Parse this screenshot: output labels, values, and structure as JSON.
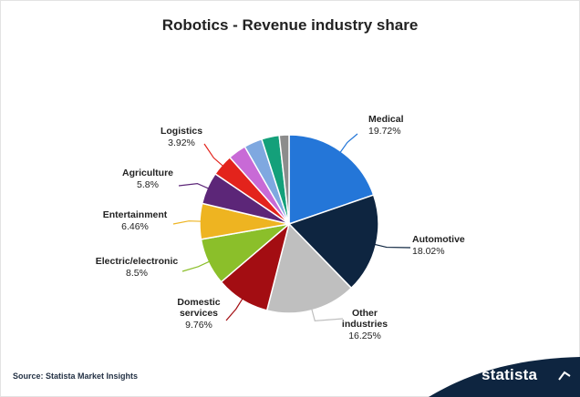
{
  "chart_data": {
    "type": "pie",
    "title": "Robotics - Revenue industry share",
    "slices": [
      {
        "label": "Medical",
        "value": 19.72,
        "value_label": "19.72%",
        "color": "#2476d8"
      },
      {
        "label": "Automotive",
        "value": 18.02,
        "value_label": "18.02%",
        "color": "#0e2540"
      },
      {
        "label": "Other industries",
        "value": 16.25,
        "value_label": "16.25%",
        "color": "#bfbfbf"
      },
      {
        "label": "Domestic services",
        "value": 9.76,
        "value_label": "9.76%",
        "color": "#a30d12"
      },
      {
        "label": "Electric/electronic",
        "value": 8.5,
        "value_label": "8.5%",
        "color": "#8bbf2a"
      },
      {
        "label": "Entertainment",
        "value": 6.46,
        "value_label": "6.46%",
        "color": "#eeb421"
      },
      {
        "label": "Agriculture",
        "value": 5.8,
        "value_label": "5.8%",
        "color": "#5c2678"
      },
      {
        "label": "Logistics",
        "value": 3.92,
        "value_label": "3.92%",
        "color": "#e3231c"
      },
      {
        "label": "",
        "value": 3.3,
        "value_label": "",
        "color": "#c86ad6"
      },
      {
        "label": "",
        "value": 3.3,
        "value_label": "",
        "color": "#7fa8e0"
      },
      {
        "label": "",
        "value": 3.2,
        "value_label": "",
        "color": "#14a07a"
      },
      {
        "label": "",
        "value": 1.77,
        "value_label": "",
        "color": "#8c8c8c"
      }
    ]
  },
  "source": "Source: Statista Market Insights",
  "brand": "statista",
  "colors": {
    "accent": "#0e2540"
  }
}
